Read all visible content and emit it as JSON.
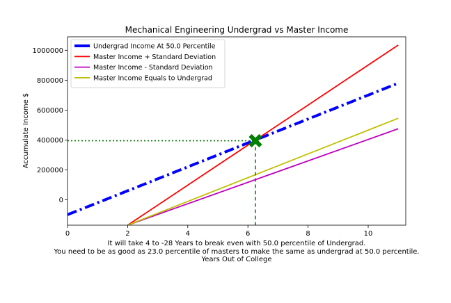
{
  "chart_data": {
    "type": "line",
    "title": "Mechanical Engineering Undergrad vs Master Income",
    "ylabel": "Accumulate Income $",
    "xlabel_lines": [
      "It will take 4 to -28 Years to break even with 50.0 percentile of Undergrad.",
      "You need to be as good as 23.0 percentile of masters to make the same as undergrad at 50.0 percentile.",
      "Years Out of College"
    ],
    "xlim": [
      0,
      11.25
    ],
    "ylim": [
      -170000,
      1090000
    ],
    "x_ticks": [
      0,
      2,
      4,
      6,
      8,
      10
    ],
    "x_tick_labels": [
      "0",
      "2",
      "4",
      "6",
      "8",
      "10"
    ],
    "y_ticks": [
      0,
      200000,
      400000,
      600000,
      800000,
      1000000
    ],
    "y_tick_labels": [
      "0",
      "200000",
      "400000",
      "600000",
      "800000",
      "1000000"
    ],
    "grid": false,
    "legend_placement": "top-left",
    "series": [
      {
        "name": "Undergrad Income At 50.0 Percentile",
        "color": "#0000ff",
        "style": "dashdot",
        "x": [
          0,
          11
        ],
        "y": [
          -100000,
          780000
        ]
      },
      {
        "name": "Master Income + Standard Deviation",
        "color": "#ff0000",
        "style": "solid",
        "x": [
          2,
          11
        ],
        "y": [
          -170000,
          1035000
        ]
      },
      {
        "name": "Master Income - Standard Deviation",
        "color": "#bf00bf",
        "style": "solid",
        "x": [
          2,
          11
        ],
        "y": [
          -170000,
          475000
        ]
      },
      {
        "name": "Master Income Equals to Undergrad",
        "color": "#bfbf00",
        "style": "solid",
        "x": [
          2,
          11
        ],
        "y": [
          -170000,
          545000
        ]
      }
    ],
    "intersection": {
      "x": 6.25,
      "y": 395000,
      "marker": "X",
      "color": "#007f00"
    },
    "guides": {
      "color": "#007f00",
      "horizontal_style": "dotted",
      "vertical_style": "dashed"
    }
  }
}
